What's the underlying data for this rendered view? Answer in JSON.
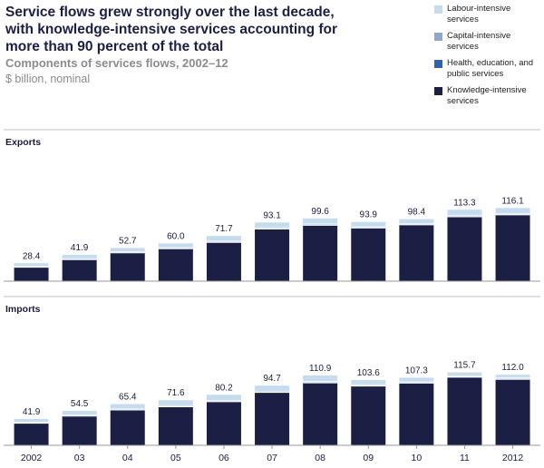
{
  "title": "Service flows grew strongly over the last decade, with knowledge-intensive services accounting for more than 90 percent of the total",
  "subtitle": "Components of services flows, 2002–12",
  "unit": "$ billion, nominal",
  "legend": [
    {
      "label": "Labour-intensive services",
      "color": "#c5dcee"
    },
    {
      "label": "Capital-intensive services",
      "color": "#8fa8cf"
    },
    {
      "label": "Health, education, and public services",
      "color": "#2f64ac"
    },
    {
      "label": "Knowledge-intensive services",
      "color": "#1c1f44"
    }
  ],
  "chart_data": [
    {
      "type": "bar",
      "stacked": true,
      "panel_label": "Exports",
      "categories": [
        "2002",
        "03",
        "04",
        "05",
        "06",
        "07",
        "08",
        "09",
        "10",
        "11",
        "12"
      ],
      "x_tick_labels": [
        "2002",
        "03",
        "04",
        "05",
        "06",
        "07",
        "08",
        "09",
        "10",
        "11",
        "2012"
      ],
      "totals": [
        28.4,
        41.9,
        52.7,
        60.0,
        71.7,
        93.1,
        99.6,
        93.9,
        98.4,
        113.3,
        116.1
      ],
      "total_labels": [
        "28.4",
        "41.9",
        "52.7",
        "60.0",
        "71.7",
        "93.1",
        "99.6",
        "93.9",
        "98.4",
        "113.3",
        "116.1"
      ],
      "ylim": [
        0,
        125
      ],
      "series": [
        {
          "name": "Knowledge-intensive services",
          "color": "#1c1f44",
          "values": [
            22.0,
            34.0,
            44.8,
            51.3,
            61.4,
            82.5,
            88.6,
            84.2,
            89.3,
            102.0,
            105.0
          ]
        },
        {
          "name": "Health, education, and public services",
          "color": "#2f64ac",
          "values": [
            0.3,
            0.4,
            0.4,
            0.5,
            0.5,
            0.6,
            0.6,
            0.6,
            0.6,
            0.7,
            0.7
          ]
        },
        {
          "name": "Capital-intensive services",
          "color": "#8fa8cf",
          "values": [
            0.8,
            1.2,
            1.3,
            1.4,
            1.5,
            1.6,
            1.6,
            1.5,
            1.5,
            1.6,
            1.6
          ]
        },
        {
          "name": "Labour-intensive services",
          "color": "#c5dcee",
          "values": [
            5.3,
            6.3,
            6.2,
            6.8,
            8.3,
            8.4,
            8.8,
            7.6,
            7.0,
            9.0,
            8.8
          ]
        }
      ]
    },
    {
      "type": "bar",
      "stacked": true,
      "panel_label": "Imports",
      "categories": [
        "2002",
        "03",
        "04",
        "05",
        "06",
        "07",
        "08",
        "09",
        "10",
        "11",
        "12"
      ],
      "x_tick_labels": [
        "2002",
        "03",
        "04",
        "05",
        "06",
        "07",
        "08",
        "09",
        "10",
        "11",
        "2012"
      ],
      "totals": [
        41.9,
        54.5,
        65.4,
        71.6,
        80.2,
        94.7,
        110.9,
        103.6,
        107.3,
        115.7,
        112.0
      ],
      "total_labels": [
        "41.9",
        "54.5",
        "65.4",
        "71.6",
        "80.2",
        "94.7",
        "110.9",
        "103.6",
        "107.3",
        "115.7",
        "112.0"
      ],
      "ylim": [
        0,
        125
      ],
      "series": [
        {
          "name": "Knowledge-intensive services",
          "color": "#1c1f44",
          "values": [
            35.0,
            46.2,
            55.9,
            61.0,
            69.1,
            83.8,
            99.0,
            94.0,
            98.6,
            108.0,
            104.6
          ]
        },
        {
          "name": "Health, education, and public services",
          "color": "#2f64ac",
          "values": [
            0.4,
            0.4,
            0.5,
            0.5,
            0.6,
            0.6,
            0.7,
            0.6,
            0.6,
            0.7,
            0.7
          ]
        },
        {
          "name": "Capital-intensive services",
          "color": "#8fa8cf",
          "values": [
            1.0,
            1.2,
            1.3,
            1.4,
            1.5,
            1.6,
            1.6,
            1.5,
            1.5,
            1.6,
            1.6
          ]
        },
        {
          "name": "Labour-intensive services",
          "color": "#c5dcee",
          "values": [
            5.5,
            6.7,
            7.7,
            8.7,
            9.0,
            8.7,
            9.6,
            7.5,
            6.6,
            5.4,
            5.1
          ]
        }
      ]
    }
  ]
}
